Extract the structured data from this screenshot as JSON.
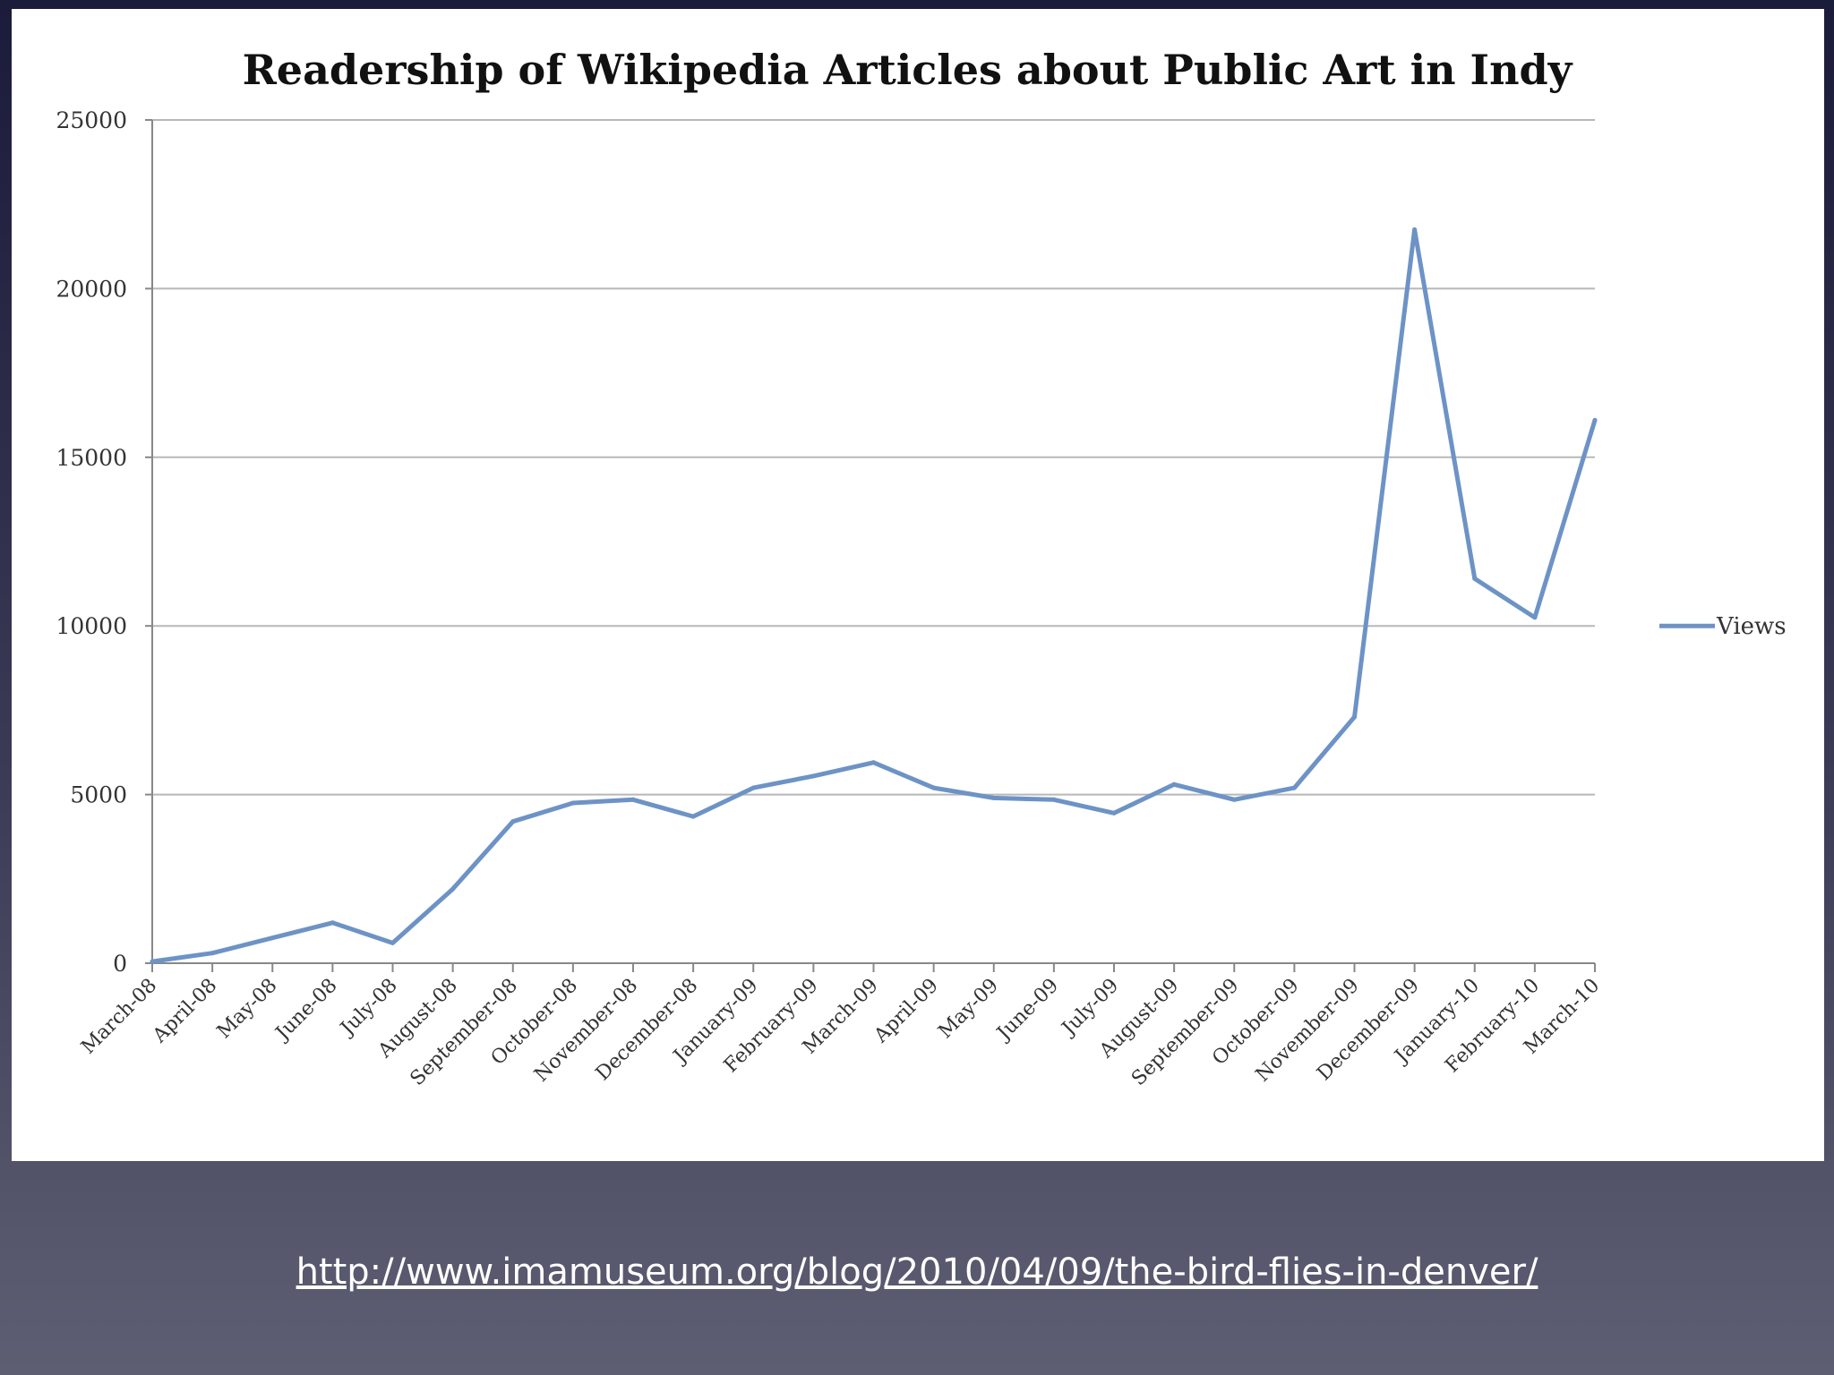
{
  "chart_data": {
    "type": "line",
    "title": "Readership of Wikipedia Articles about Public Art in Indy",
    "xlabel": "",
    "ylabel": "",
    "ylim": [
      0,
      25000
    ],
    "yticks": [
      "0",
      "5000",
      "10000",
      "15000",
      "20000",
      "25000"
    ],
    "grid": true,
    "legend": "right",
    "categories": [
      "March-08",
      "April-08",
      "May-08",
      "June-08",
      "July-08",
      "August-08",
      "September-08",
      "October-08",
      "November-08",
      "December-08",
      "January-09",
      "February-09",
      "March-09",
      "April-09",
      "May-09",
      "June-09",
      "July-09",
      "August-09",
      "September-09",
      "October-09",
      "November-09",
      "December-09",
      "January-10",
      "February-10",
      "March-10"
    ],
    "series": [
      {
        "name": "Views",
        "color": "#6d93c6",
        "values": [
          50,
          300,
          750,
          1200,
          600,
          2200,
          4200,
          4750,
          4850,
          4350,
          5200,
          5550,
          5950,
          5200,
          4900,
          4850,
          4450,
          5300,
          4850,
          5200,
          7300,
          21750,
          11400,
          10250,
          16100
        ]
      }
    ]
  },
  "footer": {
    "source_url": "http://www.imamuseum.org/blog/2010/04/09/the-bird-flies-in-denver/"
  }
}
